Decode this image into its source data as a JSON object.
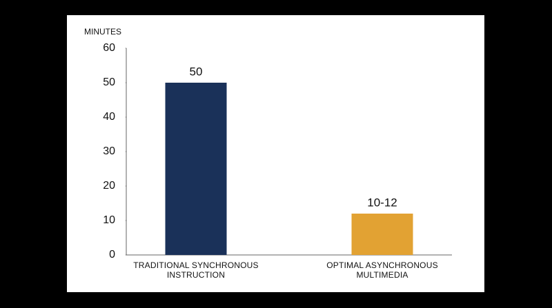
{
  "chart_data": {
    "type": "bar",
    "y_axis_label": "MINUTES",
    "categories": [
      "TRADITIONAL SYNCHRONOUS INSTRUCTION",
      "OPTIMAL ASYNCHRONOUS MULTIMEDIA"
    ],
    "values": [
      50,
      12
    ],
    "value_labels": [
      "50",
      "10-12"
    ],
    "colors": [
      "#1a3159",
      "#e2a233"
    ],
    "ylim": [
      0,
      60
    ],
    "yticks": [
      0,
      10,
      20,
      30,
      40,
      50,
      60
    ],
    "grid": false
  }
}
